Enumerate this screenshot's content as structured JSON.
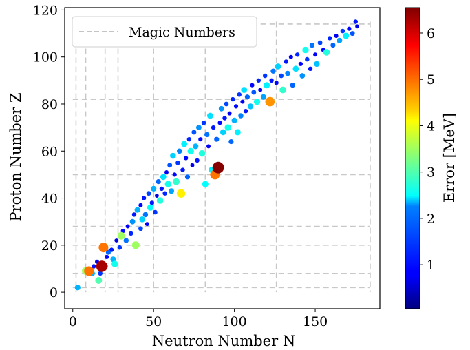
{
  "chart_data": {
    "type": "scatter",
    "xlabel": "Neutron Number N",
    "ylabel": "Proton Number Z",
    "xlim": [
      -5,
      190
    ],
    "ylim": [
      -7,
      121
    ],
    "xticks": [
      0,
      50,
      100,
      150
    ],
    "yticks": [
      0,
      20,
      40,
      60,
      80,
      100,
      120
    ],
    "grid": false,
    "legend": {
      "placement": "top-left",
      "entries": [
        {
          "label": "Magic Numbers",
          "style": "dashed",
          "color": "#b0b0b0"
        }
      ]
    },
    "magic_numbers": {
      "N_vertical": [
        2,
        8,
        20,
        28,
        50,
        82,
        126,
        184
      ],
      "Z_horizontal": [
        2,
        8,
        20,
        28,
        50,
        82,
        114
      ]
    },
    "colorbar": {
      "label": "Error [MeV]",
      "colormap": "jet",
      "range": [
        0.05,
        6.55
      ],
      "ticks": [
        1,
        2,
        3,
        4,
        5,
        6
      ]
    },
    "series": [
      {
        "points": [
          {
            "x": 3,
            "y": 2,
            "e": 2.0
          },
          {
            "x": 8,
            "y": 9,
            "e": 3.5
          },
          {
            "x": 10,
            "y": 9,
            "e": 5.0
          },
          {
            "x": 12,
            "y": 8,
            "e": 2.0
          },
          {
            "x": 13,
            "y": 11,
            "e": 1.0
          },
          {
            "x": 15,
            "y": 13,
            "e": 0.8
          },
          {
            "x": 16,
            "y": 5,
            "e": 3.0
          },
          {
            "x": 17,
            "y": 8,
            "e": 1.2
          },
          {
            "x": 18,
            "y": 11,
            "e": 6.3
          },
          {
            "x": 19,
            "y": 19,
            "e": 5.0
          },
          {
            "x": 20,
            "y": 11,
            "e": 2.2
          },
          {
            "x": 21,
            "y": 15,
            "e": 0.9
          },
          {
            "x": 22,
            "y": 17,
            "e": 1.5
          },
          {
            "x": 24,
            "y": 18,
            "e": 1.0
          },
          {
            "x": 25,
            "y": 14,
            "e": 2.0
          },
          {
            "x": 26,
            "y": 12,
            "e": 2.6
          },
          {
            "x": 27,
            "y": 22,
            "e": 0.7
          },
          {
            "x": 29,
            "y": 19,
            "e": 1.2
          },
          {
            "x": 30,
            "y": 24,
            "e": 3.5
          },
          {
            "x": 31,
            "y": 26,
            "e": 0.9
          },
          {
            "x": 33,
            "y": 22,
            "e": 1.6
          },
          {
            "x": 34,
            "y": 28,
            "e": 0.8
          },
          {
            "x": 36,
            "y": 25,
            "e": 1.1
          },
          {
            "x": 37,
            "y": 30,
            "e": 1.8
          },
          {
            "x": 38,
            "y": 33,
            "e": 1.0
          },
          {
            "x": 39,
            "y": 20,
            "e": 3.5
          },
          {
            "x": 40,
            "y": 35,
            "e": 2.0
          },
          {
            "x": 42,
            "y": 27,
            "e": 1.3
          },
          {
            "x": 42,
            "y": 37,
            "e": 0.9
          },
          {
            "x": 43,
            "y": 31,
            "e": 2.2
          },
          {
            "x": 44,
            "y": 40,
            "e": 1.0
          },
          {
            "x": 45,
            "y": 33,
            "e": 1.6
          },
          {
            "x": 46,
            "y": 29,
            "e": 0.8
          },
          {
            "x": 47,
            "y": 42,
            "e": 1.3
          },
          {
            "x": 48,
            "y": 36,
            "e": 2.5
          },
          {
            "x": 49,
            "y": 38,
            "e": 1.0
          },
          {
            "x": 50,
            "y": 44,
            "e": 2.0
          },
          {
            "x": 51,
            "y": 34,
            "e": 1.2
          },
          {
            "x": 52,
            "y": 41,
            "e": 0.7
          },
          {
            "x": 53,
            "y": 47,
            "e": 1.5
          },
          {
            "x": 54,
            "y": 39,
            "e": 2.7
          },
          {
            "x": 55,
            "y": 44,
            "e": 1.0
          },
          {
            "x": 56,
            "y": 49,
            "e": 2.3
          },
          {
            "x": 57,
            "y": 42,
            "e": 1.1
          },
          {
            "x": 58,
            "y": 51,
            "e": 0.8
          },
          {
            "x": 59,
            "y": 46,
            "e": 2.6
          },
          {
            "x": 60,
            "y": 54,
            "e": 1.4
          },
          {
            "x": 61,
            "y": 43,
            "e": 1.9
          },
          {
            "x": 62,
            "y": 58,
            "e": 2.2
          },
          {
            "x": 63,
            "y": 50,
            "e": 0.9
          },
          {
            "x": 64,
            "y": 47,
            "e": 2.8
          },
          {
            "x": 65,
            "y": 55,
            "e": 1.2
          },
          {
            "x": 66,
            "y": 60,
            "e": 1.7
          },
          {
            "x": 67,
            "y": 42,
            "e": 4.2
          },
          {
            "x": 68,
            "y": 52,
            "e": 1.0
          },
          {
            "x": 69,
            "y": 63,
            "e": 2.4
          },
          {
            "x": 70,
            "y": 57,
            "e": 0.9
          },
          {
            "x": 71,
            "y": 49,
            "e": 1.5
          },
          {
            "x": 72,
            "y": 65,
            "e": 1.1
          },
          {
            "x": 73,
            "y": 60,
            "e": 2.6
          },
          {
            "x": 74,
            "y": 54,
            "e": 0.8
          },
          {
            "x": 75,
            "y": 68,
            "e": 1.4
          },
          {
            "x": 76,
            "y": 62,
            "e": 2.0
          },
          {
            "x": 77,
            "y": 56,
            "e": 1.0
          },
          {
            "x": 78,
            "y": 70,
            "e": 1.8
          },
          {
            "x": 79,
            "y": 65,
            "e": 0.9
          },
          {
            "x": 80,
            "y": 59,
            "e": 2.7
          },
          {
            "x": 81,
            "y": 72,
            "e": 1.2
          },
          {
            "x": 82,
            "y": 46,
            "e": 2.5
          },
          {
            "x": 83,
            "y": 67,
            "e": 1.6
          },
          {
            "x": 84,
            "y": 62,
            "e": 0.8
          },
          {
            "x": 85,
            "y": 75,
            "e": 2.3
          },
          {
            "x": 86,
            "y": 52,
            "e": 2.4
          },
          {
            "x": 87,
            "y": 70,
            "e": 1.0
          },
          {
            "x": 88,
            "y": 50,
            "e": 5.0
          },
          {
            "x": 89,
            "y": 65,
            "e": 1.5
          },
          {
            "x": 90,
            "y": 53,
            "e": 6.5
          },
          {
            "x": 91,
            "y": 72,
            "e": 0.9
          },
          {
            "x": 92,
            "y": 78,
            "e": 1.8
          },
          {
            "x": 93,
            "y": 68,
            "e": 2.2
          },
          {
            "x": 94,
            "y": 74,
            "e": 1.0
          },
          {
            "x": 95,
            "y": 80,
            "e": 1.3
          },
          {
            "x": 96,
            "y": 70,
            "e": 2.6
          },
          {
            "x": 97,
            "y": 76,
            "e": 0.8
          },
          {
            "x": 98,
            "y": 64,
            "e": 1.5
          },
          {
            "x": 99,
            "y": 82,
            "e": 1.1
          },
          {
            "x": 100,
            "y": 73,
            "e": 2.0
          },
          {
            "x": 101,
            "y": 79,
            "e": 0.9
          },
          {
            "x": 102,
            "y": 68,
            "e": 2.4
          },
          {
            "x": 103,
            "y": 84,
            "e": 1.2
          },
          {
            "x": 104,
            "y": 75,
            "e": 1.7
          },
          {
            "x": 105,
            "y": 81,
            "e": 0.8
          },
          {
            "x": 106,
            "y": 86,
            "e": 2.3
          },
          {
            "x": 107,
            "y": 77,
            "e": 1.0
          },
          {
            "x": 108,
            "y": 83,
            "e": 1.5
          },
          {
            "x": 110,
            "y": 79,
            "e": 2.1
          },
          {
            "x": 111,
            "y": 88,
            "e": 0.9
          },
          {
            "x": 112,
            "y": 85,
            "e": 1.4
          },
          {
            "x": 114,
            "y": 81,
            "e": 2.6
          },
          {
            "x": 115,
            "y": 90,
            "e": 1.1
          },
          {
            "x": 116,
            "y": 86,
            "e": 0.8
          },
          {
            "x": 118,
            "y": 83,
            "e": 1.9
          },
          {
            "x": 119,
            "y": 92,
            "e": 1.2
          },
          {
            "x": 120,
            "y": 88,
            "e": 2.4
          },
          {
            "x": 122,
            "y": 81,
            "e": 4.8
          },
          {
            "x": 123,
            "y": 90,
            "e": 1.0
          },
          {
            "x": 124,
            "y": 94,
            "e": 1.6
          },
          {
            "x": 126,
            "y": 89,
            "e": 0.9
          },
          {
            "x": 127,
            "y": 96,
            "e": 2.2
          },
          {
            "x": 129,
            "y": 92,
            "e": 1.3
          },
          {
            "x": 130,
            "y": 86,
            "e": 2.8
          },
          {
            "x": 132,
            "y": 98,
            "e": 1.0
          },
          {
            "x": 133,
            "y": 93,
            "e": 1.7
          },
          {
            "x": 135,
            "y": 100,
            "e": 0.8
          },
          {
            "x": 136,
            "y": 88,
            "e": 1.5
          },
          {
            "x": 138,
            "y": 95,
            "e": 2.3
          },
          {
            "x": 139,
            "y": 101,
            "e": 1.1
          },
          {
            "x": 141,
            "y": 97,
            "e": 0.9
          },
          {
            "x": 142,
            "y": 92,
            "e": 1.8
          },
          {
            "x": 144,
            "y": 103,
            "e": 2.6
          },
          {
            "x": 145,
            "y": 99,
            "e": 1.2
          },
          {
            "x": 147,
            "y": 95,
            "e": 1.0
          },
          {
            "x": 148,
            "y": 105,
            "e": 1.6
          },
          {
            "x": 150,
            "y": 101,
            "e": 0.8
          },
          {
            "x": 151,
            "y": 97,
            "e": 2.1
          },
          {
            "x": 153,
            "y": 106,
            "e": 1.3
          },
          {
            "x": 155,
            "y": 103,
            "e": 0.9
          },
          {
            "x": 157,
            "y": 102,
            "e": 2.7
          },
          {
            "x": 159,
            "y": 108,
            "e": 1.1
          },
          {
            "x": 161,
            "y": 105,
            "e": 1.5
          },
          {
            "x": 163,
            "y": 109,
            "e": 0.8
          },
          {
            "x": 165,
            "y": 107,
            "e": 1.9
          },
          {
            "x": 167,
            "y": 111,
            "e": 1.2
          },
          {
            "x": 169,
            "y": 109,
            "e": 2.4
          },
          {
            "x": 171,
            "y": 112,
            "e": 0.9
          },
          {
            "x": 173,
            "y": 110,
            "e": 1.4
          },
          {
            "x": 175,
            "y": 115,
            "e": 1.0
          },
          {
            "x": 176,
            "y": 113,
            "e": 0.7
          }
        ]
      }
    ]
  }
}
